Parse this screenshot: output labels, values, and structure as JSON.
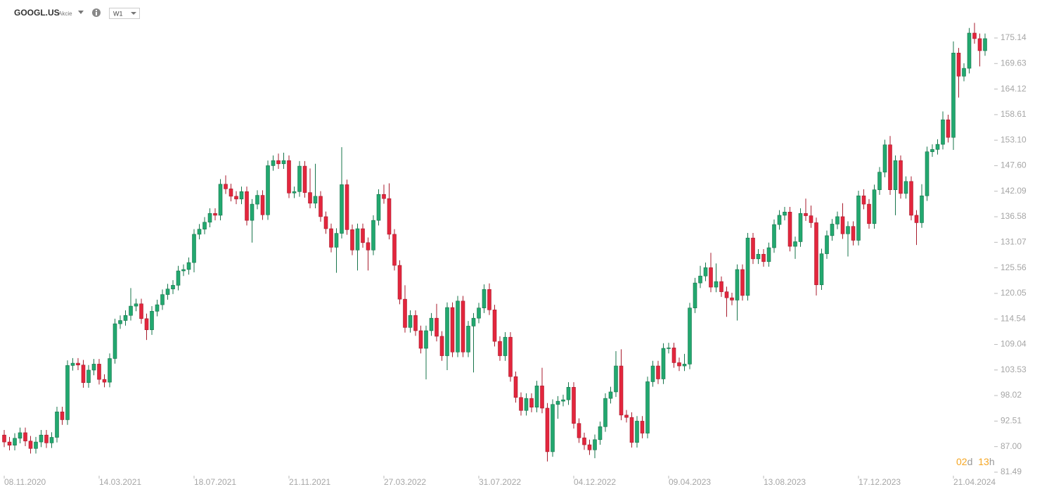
{
  "header": {
    "symbol": "GOOGL.US",
    "asset_class": "Akcie",
    "interval": "W1"
  },
  "countdown": {
    "days": "02",
    "day_unit": "d",
    "hours": "13",
    "hour_unit": "h"
  },
  "chart_data": {
    "type": "candlestick",
    "up_color": "#22a86f",
    "down_color": "#e3263d",
    "up_edge": "#17744b",
    "down_edge": "#a81b2c",
    "ylim": [
      80.12,
      178.78
    ],
    "yticks": [
      81.49,
      {
        "value": 87,
        "label": "87.00"
      },
      92.51,
      98.02,
      103.53,
      109.04,
      114.54,
      120.05,
      125.56,
      131.07,
      136.58,
      142.09,
      {
        "value": 147.6,
        "label": "147.60"
      },
      {
        "value": 153.1,
        "label": "153.10"
      },
      158.61,
      164.12,
      169.63,
      175.14
    ],
    "categories": [
      "08.11.2020",
      null,
      null,
      null,
      null,
      null,
      null,
      null,
      null,
      null,
      null,
      null,
      null,
      null,
      null,
      null,
      null,
      null,
      "14.03.2021",
      null,
      null,
      null,
      null,
      null,
      null,
      null,
      null,
      null,
      null,
      null,
      null,
      null,
      null,
      null,
      null,
      null,
      "18.07.2021",
      null,
      null,
      null,
      null,
      null,
      null,
      null,
      null,
      null,
      null,
      null,
      null,
      null,
      null,
      null,
      null,
      null,
      "21.11.2021",
      null,
      null,
      null,
      null,
      null,
      null,
      null,
      null,
      null,
      null,
      null,
      null,
      null,
      null,
      null,
      null,
      null,
      "27.03.2022",
      null,
      null,
      null,
      null,
      null,
      null,
      null,
      null,
      null,
      null,
      null,
      null,
      null,
      null,
      null,
      null,
      null,
      "31.07.2022",
      null,
      null,
      null,
      null,
      null,
      null,
      null,
      null,
      null,
      null,
      null,
      null,
      null,
      null,
      null,
      null,
      null,
      "04.12.2022",
      null,
      null,
      null,
      null,
      null,
      null,
      null,
      null,
      null,
      null,
      null,
      null,
      null,
      null,
      null,
      null,
      null,
      "09.04.2023",
      null,
      null,
      null,
      null,
      null,
      null,
      null,
      null,
      null,
      null,
      null,
      null,
      null,
      null,
      null,
      null,
      null,
      "13.08.2023",
      null,
      null,
      null,
      null,
      null,
      null,
      null,
      null,
      null,
      null,
      null,
      null,
      null,
      null,
      null,
      null,
      null,
      "17.12.2023",
      null,
      null,
      null,
      null,
      null,
      null,
      null,
      null,
      null,
      null,
      null,
      null,
      null,
      null,
      null,
      null,
      null,
      "21.04.2024",
      null,
      null,
      null,
      null,
      null,
      null
    ],
    "open": [
      89.5,
      88.0,
      87.3,
      88.8,
      90.0,
      88.2,
      86.6,
      88.0,
      89.5,
      87.8,
      89.0,
      94.5,
      92.8,
      104.5,
      105.0,
      104.6,
      100.8,
      103.5,
      104.8,
      101.5,
      100.9,
      106.0,
      113.5,
      114.2,
      115.3,
      117.3,
      117.8,
      114.6,
      112.2,
      116.2,
      117.6,
      119.8,
      121.0,
      121.8,
      124.9,
      125.2,
      126.7,
      132.8,
      133.9,
      135.4,
      137.3,
      136.9,
      143.6,
      142.6,
      141.0,
      140.4,
      142.0,
      135.8,
      139.3,
      141.2,
      137.0,
      147.6,
      148.7,
      148.0,
      148.7,
      141.7,
      142.0,
      147.5,
      141.8,
      139.5,
      141.0,
      136.6,
      134.0,
      130.0,
      133.0,
      143.5,
      133.8,
      129.4,
      134.0,
      131.0,
      129.4,
      135.8,
      141.4,
      140.5,
      132.8,
      126.1,
      118.8,
      112.7,
      115.3,
      112.0,
      108.2,
      112.0,
      114.7,
      110.8,
      106.6,
      117.0,
      107.4,
      118.4,
      107.4,
      113.0,
      114.7,
      116.9,
      120.9,
      116.5,
      109.7,
      106.6,
      110.6,
      102.1,
      97.6,
      94.8,
      97.4,
      95.5,
      100.1,
      95.3,
      85.9,
      96.1,
      96.8,
      97.1,
      99.8,
      92.0,
      88.9,
      87.4,
      86.3,
      88.5,
      91.3,
      97.4,
      98.8,
      104.4,
      93.8,
      93.3,
      87.9,
      92.5,
      89.9,
      101.0,
      104.4,
      101.6,
      108.2,
      108.3,
      105.1,
      104.4,
      104.8,
      116.9,
      122.3,
      123.8,
      125.6,
      121.4,
      122.6,
      120.4,
      119.1,
      118.6,
      125.2,
      119.6,
      132.0,
      127.5,
      128.5,
      126.9,
      129.9,
      134.9,
      136.9,
      137.6,
      130.2,
      131.2,
      137.3,
      136.8,
      135.3,
      121.9,
      128.6,
      132.5,
      135.0,
      136.6,
      132.9,
      134.5,
      131.5,
      141.1,
      139.3,
      135.1,
      142.4,
      146.2,
      152.1,
      142.4,
      148.7,
      141.6,
      144.2,
      136.9,
      135.3,
      141.1,
      150.6,
      151.1,
      152.2,
      157.5,
      153.7,
      171.9,
      166.9,
      168.6,
      176.2,
      175.0,
      172.4
    ],
    "high": [
      90.6,
      89.1,
      89.9,
      91.1,
      91.1,
      89.3,
      89.1,
      90.6,
      90.6,
      90.1,
      95.6,
      95.6,
      105.6,
      106.1,
      106.1,
      105.7,
      104.6,
      105.9,
      105.9,
      102.6,
      107.1,
      114.6,
      115.3,
      116.4,
      121.2,
      118.9,
      118.9,
      115.7,
      117.3,
      118.7,
      120.9,
      122.1,
      122.9,
      126.0,
      126.3,
      127.8,
      133.9,
      135.0,
      136.5,
      138.4,
      138.4,
      144.7,
      145.5,
      143.7,
      142.1,
      143.1,
      143.1,
      140.4,
      142.3,
      142.3,
      148.7,
      149.8,
      150.2,
      150.4,
      149.8,
      143.1,
      148.6,
      148.6,
      147.0,
      148.0,
      142.1,
      137.7,
      135.1,
      134.1,
      151.6,
      144.6,
      134.9,
      135.1,
      135.1,
      132.1,
      136.9,
      142.5,
      143.5,
      143.8,
      133.9,
      127.2,
      121.8,
      116.4,
      116.4,
      113.1,
      113.1,
      115.8,
      117.8,
      111.9,
      118.1,
      118.1,
      119.5,
      119.5,
      114.1,
      115.8,
      118.0,
      122.0,
      122.2,
      117.6,
      110.8,
      111.7,
      111.7,
      103.2,
      98.7,
      98.5,
      98.5,
      101.2,
      104.0,
      96.4,
      97.2,
      97.9,
      98.2,
      100.9,
      100.9,
      93.1,
      90.0,
      88.5,
      89.6,
      92.4,
      98.5,
      99.9,
      107.6,
      108.0,
      94.9,
      94.4,
      93.6,
      93.6,
      102.1,
      105.5,
      105.5,
      109.3,
      109.4,
      109.4,
      106.2,
      107.0,
      118.0,
      123.4,
      126.0,
      126.7,
      128.8,
      126.5,
      123.7,
      121.5,
      120.2,
      126.3,
      126.3,
      133.1,
      133.1,
      129.6,
      129.6,
      131.0,
      136.0,
      138.0,
      138.7,
      138.7,
      132.3,
      138.4,
      140.5,
      139.0,
      136.4,
      129.7,
      133.6,
      136.1,
      137.7,
      139.5,
      135.6,
      135.6,
      142.2,
      142.5,
      140.4,
      143.5,
      147.3,
      153.2,
      154.0,
      149.8,
      149.8,
      145.3,
      145.3,
      138.0,
      143.6,
      151.7,
      152.2,
      153.3,
      159.3,
      158.6,
      174.4,
      173.0,
      169.7,
      177.3,
      178.4,
      176.1,
      176.1
    ],
    "low": [
      86.9,
      86.2,
      86.2,
      87.7,
      87.1,
      85.5,
      85.5,
      86.9,
      86.7,
      86.7,
      87.9,
      91.7,
      91.7,
      103.4,
      103.5,
      99.7,
      99.7,
      102.4,
      100.4,
      99.8,
      99.8,
      104.9,
      112.4,
      113.1,
      114.2,
      116.2,
      113.5,
      110.0,
      111.1,
      115.1,
      116.5,
      118.7,
      119.9,
      120.7,
      123.8,
      124.1,
      124.6,
      131.7,
      132.8,
      134.3,
      135.8,
      135.8,
      141.5,
      139.9,
      139.3,
      139.3,
      134.7,
      131.0,
      138.2,
      135.9,
      135.9,
      146.5,
      146.9,
      146.9,
      140.6,
      140.6,
      140.9,
      140.7,
      138.4,
      138.4,
      135.5,
      132.9,
      128.9,
      124.5,
      131.9,
      132.7,
      128.3,
      125.0,
      129.9,
      125.0,
      128.3,
      134.7,
      139.4,
      131.7,
      125.0,
      117.7,
      111.6,
      111.6,
      110.9,
      107.1,
      101.5,
      110.9,
      109.7,
      105.5,
      103.5,
      106.3,
      106.3,
      106.3,
      106.3,
      103.0,
      113.6,
      115.8,
      115.4,
      108.6,
      105.5,
      105.5,
      101.0,
      96.5,
      93.7,
      93.7,
      94.4,
      94.4,
      94.2,
      83.8,
      84.8,
      93.0,
      95.7,
      96.0,
      90.9,
      87.8,
      86.3,
      85.2,
      84.5,
      87.4,
      90.2,
      96.3,
      97.7,
      92.7,
      92.2,
      86.8,
      86.8,
      88.8,
      88.8,
      99.9,
      100.5,
      100.5,
      107.1,
      104.0,
      103.3,
      103.3,
      103.7,
      115.8,
      121.2,
      122.7,
      120.3,
      120.3,
      119.3,
      115.0,
      117.5,
      114.2,
      118.5,
      118.5,
      126.4,
      126.4,
      125.8,
      125.8,
      128.8,
      133.8,
      135.8,
      129.1,
      127.5,
      130.1,
      135.7,
      134.2,
      119.6,
      120.8,
      127.5,
      131.4,
      133.9,
      131.8,
      128.0,
      130.4,
      130.4,
      138.2,
      134.0,
      134.0,
      141.3,
      145.1,
      141.3,
      136.9,
      140.5,
      140.5,
      135.8,
      130.5,
      134.2,
      140.0,
      149.5,
      150.0,
      151.1,
      152.6,
      151.0,
      162.3,
      165.8,
      167.5,
      173.9,
      169.0,
      171.3
    ],
    "close": [
      88.0,
      87.3,
      88.8,
      90.0,
      88.2,
      86.6,
      88.0,
      89.5,
      87.8,
      89.0,
      94.5,
      92.8,
      104.5,
      105.0,
      104.6,
      100.8,
      103.5,
      104.8,
      101.5,
      100.9,
      106.0,
      113.5,
      114.2,
      115.3,
      117.3,
      117.8,
      114.6,
      112.2,
      116.2,
      117.6,
      119.8,
      121.0,
      121.8,
      124.9,
      125.2,
      126.7,
      132.8,
      133.9,
      135.4,
      137.3,
      136.9,
      143.6,
      142.6,
      141.0,
      140.4,
      142.0,
      135.8,
      139.3,
      141.2,
      137.0,
      147.6,
      148.7,
      148.0,
      148.7,
      141.7,
      142.0,
      147.5,
      141.8,
      139.5,
      141.0,
      136.6,
      134.0,
      130.0,
      133.0,
      143.5,
      133.8,
      129.4,
      134.0,
      131.0,
      129.4,
      135.8,
      141.4,
      140.5,
      132.8,
      126.1,
      118.8,
      112.7,
      115.3,
      112.0,
      108.2,
      112.0,
      114.7,
      110.8,
      106.6,
      117.0,
      107.4,
      118.4,
      107.4,
      113.0,
      114.7,
      116.9,
      120.9,
      116.5,
      109.7,
      106.6,
      110.6,
      102.1,
      97.6,
      94.8,
      97.4,
      95.5,
      100.1,
      95.3,
      85.9,
      96.1,
      96.8,
      97.1,
      99.8,
      92.0,
      88.9,
      87.4,
      86.3,
      88.5,
      91.3,
      97.4,
      98.8,
      104.4,
      93.8,
      93.3,
      87.9,
      92.5,
      89.9,
      101.0,
      104.4,
      101.6,
      108.2,
      108.3,
      105.1,
      104.4,
      104.8,
      116.9,
      122.3,
      123.8,
      125.6,
      121.4,
      122.6,
      120.4,
      119.1,
      118.6,
      125.2,
      119.6,
      132.0,
      127.5,
      128.5,
      126.9,
      129.9,
      134.9,
      136.9,
      137.6,
      130.2,
      131.2,
      137.3,
      136.8,
      135.3,
      121.9,
      128.6,
      132.5,
      135.0,
      136.6,
      132.9,
      134.5,
      131.5,
      141.1,
      139.3,
      135.1,
      142.4,
      146.2,
      152.1,
      142.4,
      148.7,
      141.6,
      144.2,
      136.9,
      135.3,
      141.1,
      150.6,
      151.1,
      152.2,
      157.5,
      153.7,
      171.9,
      166.9,
      168.6,
      176.2,
      175.0,
      172.4,
      175.0
    ]
  }
}
